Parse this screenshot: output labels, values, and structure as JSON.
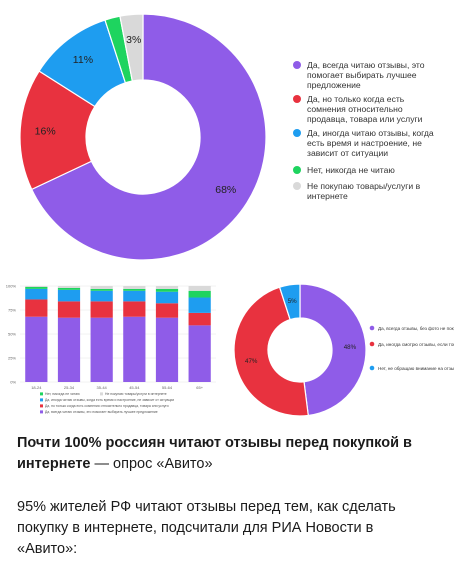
{
  "colors": {
    "purple": "#8f5ce8",
    "red": "#e8323f",
    "blue": "#1e9df0",
    "green": "#1ed45f",
    "gray": "#d9d9d9",
    "text": "#1b1b1b"
  },
  "chart_data": [
    {
      "type": "pie",
      "style": "donut",
      "slices": [
        {
          "label": "Да, всегда читаю отзывы, это помогает выбирать лучшее предложение",
          "value": 68,
          "display": "68%",
          "color": "#8f5ce8"
        },
        {
          "label": "Да, но только когда есть сомнения относительно продавца, товара или услуги",
          "value": 16,
          "display": "16%",
          "color": "#e8323f"
        },
        {
          "label": "Да, иногда читаю отзывы, когда есть время и настроение, не зависит от ситуации",
          "value": 11,
          "display": "11%",
          "color": "#1e9df0"
        },
        {
          "label": "Нет, никогда не читаю",
          "value": 2,
          "display": "",
          "color": "#1ed45f"
        },
        {
          "label": "Не покупаю товары/услуги в интернете",
          "value": 3,
          "display": "3%",
          "color": "#d9d9d9"
        }
      ],
      "legend": "right"
    },
    {
      "type": "bar",
      "stacked": true,
      "categories": [
        "18-24",
        "25-34",
        "35-44",
        "45-54",
        "55-64",
        "65+"
      ],
      "ylim": [
        0,
        100
      ],
      "yticks": [
        "0%",
        "25%",
        "50%",
        "75%",
        "100%"
      ],
      "series": [
        {
          "name": "Да, всегда читаю отзывы, это помогает выбирать лучшее предложение",
          "color": "#8f5ce8",
          "values": [
            68,
            67,
            67,
            68,
            67,
            59
          ]
        },
        {
          "name": "Да, но только когда есть сомнения относительно продавца, товара или услуги",
          "color": "#e8323f",
          "values": [
            18,
            17,
            17,
            16,
            15,
            13
          ]
        },
        {
          "name": "Да, иногда читаю отзывы, когда есть время и настроение, не зависит от ситуации",
          "color": "#1e9df0",
          "values": [
            11,
            12,
            11,
            11,
            12,
            16
          ]
        },
        {
          "name": "Нет, никогда не читаю",
          "color": "#1ed45f",
          "values": [
            2,
            2,
            2,
            2,
            3,
            7
          ]
        },
        {
          "name": "Не покупаю товары/услуги в интернете",
          "color": "#d9d9d9",
          "values": [
            1,
            2,
            3,
            3,
            3,
            5
          ]
        }
      ],
      "legend": "bottom"
    },
    {
      "type": "pie",
      "style": "donut",
      "slices": [
        {
          "label": "Да, всегда отзывы, без фото не покупаю на Авито",
          "value": 48,
          "display": "48%",
          "color": "#8f5ce8"
        },
        {
          "label": "Да, иногда смотрю отзывы, если товар стоит дорого или продавец мне не знаком",
          "value": 47,
          "display": "47%",
          "color": "#e8323f"
        },
        {
          "label": "Нет, не обращаю внимание на отзывы и оценки",
          "value": 5,
          "display": "5%",
          "color": "#1e9df0"
        }
      ],
      "legend": "right"
    }
  ],
  "caption": {
    "headline_bold": "Почти 100% россиян читают отзывы перед покупкой в интернете",
    "headline_rest": " — опрос «Авито»",
    "body": "95% жителей РФ читают отзывы перед тем, как сделать покупку в интернете, подсчитали для РИА Новости в «Авито»:"
  }
}
